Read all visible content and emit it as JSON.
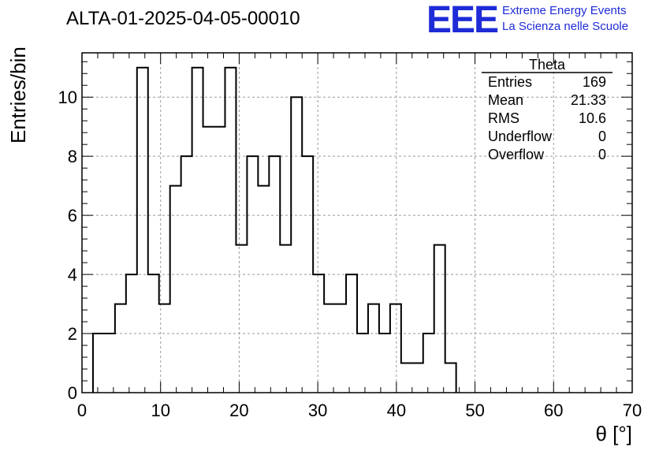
{
  "header": {
    "title": "ALTA-01-2025-04-05-00010",
    "logo_letters": "EEE",
    "logo_line1": "Extreme Energy Events",
    "logo_line2": "La Scienza nelle Scuole"
  },
  "stats_box": {
    "title": "Theta",
    "rows": [
      {
        "label": "Entries",
        "value": "169"
      },
      {
        "label": "Mean",
        "value": "21.33"
      },
      {
        "label": "RMS",
        "value": "10.6"
      },
      {
        "label": "Underflow",
        "value": "0"
      },
      {
        "label": "Overflow",
        "value": "0"
      }
    ]
  },
  "chart_data": {
    "type": "histogram",
    "title": "ALTA-01-2025-04-05-00010",
    "xlabel": "θ [°]",
    "ylabel": "Entries/bin",
    "xlim": [
      0,
      70
    ],
    "ylim": [
      0,
      11.5
    ],
    "xticks": [
      0,
      10,
      20,
      30,
      40,
      50,
      60,
      70
    ],
    "yticks": [
      0,
      2,
      4,
      6,
      8,
      10
    ],
    "grid": true,
    "line_color": "#000000",
    "bin_width": 1.4,
    "bin_start": 1.4,
    "bin_values": [
      2,
      2,
      3,
      4,
      11,
      4,
      3,
      7,
      8,
      11,
      9,
      9,
      11,
      5,
      8,
      7,
      8,
      5,
      10,
      8,
      4,
      3,
      3,
      4,
      2,
      3,
      2,
      3,
      1,
      1,
      2,
      5,
      1
    ]
  }
}
